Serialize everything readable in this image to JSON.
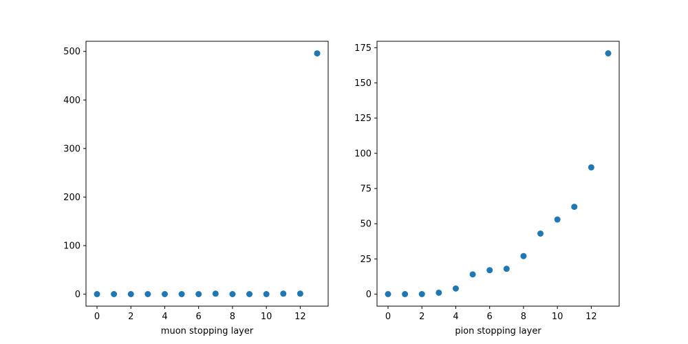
{
  "chart_data": [
    {
      "type": "scatter",
      "xlabel": "muon stopping layer",
      "ylabel": "",
      "xlim": [
        -0.65,
        13.65
      ],
      "ylim": [
        -24.8,
        520.9
      ],
      "xticks": [
        0,
        2,
        4,
        6,
        8,
        10,
        12
      ],
      "yticks": [
        0,
        100,
        200,
        300,
        400,
        500
      ],
      "grid": false,
      "marker_color": "#1f77b4",
      "x": [
        0,
        1,
        2,
        3,
        4,
        5,
        6,
        7,
        8,
        9,
        10,
        11,
        12,
        13
      ],
      "y": [
        0,
        0,
        0,
        0,
        0,
        0,
        0,
        1,
        0,
        0,
        0,
        1,
        1,
        496
      ]
    },
    {
      "type": "scatter",
      "xlabel": "pion stopping layer",
      "ylabel": "",
      "xlim": [
        -0.65,
        13.65
      ],
      "ylim": [
        -8.55,
        179.55
      ],
      "xticks": [
        0,
        2,
        4,
        6,
        8,
        10,
        12
      ],
      "yticks": [
        0,
        25,
        50,
        75,
        100,
        125,
        150,
        175
      ],
      "grid": false,
      "marker_color": "#1f77b4",
      "x": [
        0,
        1,
        2,
        3,
        4,
        5,
        6,
        7,
        8,
        9,
        10,
        11,
        12,
        13
      ],
      "y": [
        0,
        0,
        0,
        1,
        4,
        14,
        17,
        18,
        27,
        43,
        53,
        62,
        90,
        171
      ]
    }
  ]
}
